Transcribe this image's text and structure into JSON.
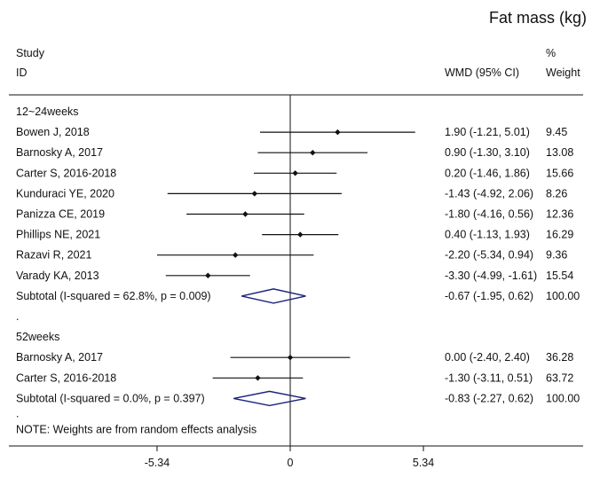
{
  "chart_data": {
    "type": "forest",
    "title": "Fat mass (kg)",
    "header": {
      "study_line1": "Study",
      "study_line2": "ID",
      "pct_line1": "%",
      "ci_label": "WMD (95% CI)",
      "weight_label": "Weight"
    },
    "x_ticks": [
      -5.34,
      0,
      5.34
    ],
    "x_tick_labels": [
      "-5.34",
      "0",
      "5.34"
    ],
    "xlim": [
      -5.34,
      5.34
    ],
    "groups": [
      {
        "label": "12~24weeks",
        "studies": [
          {
            "name": "Bowen J, 2018",
            "est": 1.9,
            "lo": -1.21,
            "hi": 5.01,
            "ci_text": "1.90 (-1.21, 5.01)",
            "weight": "9.45"
          },
          {
            "name": "Barnosky A, 2017",
            "est": 0.9,
            "lo": -1.3,
            "hi": 3.1,
            "ci_text": "0.90 (-1.30, 3.10)",
            "weight": "13.08"
          },
          {
            "name": "Carter S, 2016-2018",
            "est": 0.2,
            "lo": -1.46,
            "hi": 1.86,
            "ci_text": "0.20 (-1.46, 1.86)",
            "weight": "15.66"
          },
          {
            "name": "Kunduraci YE, 2020",
            "est": -1.43,
            "lo": -4.92,
            "hi": 2.06,
            "ci_text": "-1.43 (-4.92, 2.06)",
            "weight": "8.26"
          },
          {
            "name": "Panizza CE, 2019",
            "est": -1.8,
            "lo": -4.16,
            "hi": 0.56,
            "ci_text": "-1.80 (-4.16, 0.56)",
            "weight": "12.36"
          },
          {
            "name": "Phillips NE, 2021",
            "est": 0.4,
            "lo": -1.13,
            "hi": 1.93,
            "ci_text": "0.40 (-1.13, 1.93)",
            "weight": "16.29"
          },
          {
            "name": "Razavi R, 2021",
            "est": -2.2,
            "lo": -5.34,
            "hi": 0.94,
            "ci_text": "-2.20 (-5.34, 0.94)",
            "weight": "9.36"
          },
          {
            "name": "Varady KA, 2013",
            "est": -3.3,
            "lo": -4.99,
            "hi": -1.61,
            "ci_text": "-3.30 (-4.99, -1.61)",
            "weight": "15.54"
          }
        ],
        "subtotal": {
          "label": "Subtotal  (I-squared = 62.8%, p = 0.009)",
          "est": -0.67,
          "lo": -1.95,
          "hi": 0.62,
          "ci_text": "-0.67 (-1.95, 0.62)",
          "weight": "100.00"
        }
      },
      {
        "label": "52weeks",
        "studies": [
          {
            "name": "Barnosky A, 2017",
            "est": 0.0,
            "lo": -2.4,
            "hi": 2.4,
            "ci_text": "0.00 (-2.40, 2.40)",
            "weight": "36.28"
          },
          {
            "name": "Carter S, 2016-2018",
            "est": -1.3,
            "lo": -3.11,
            "hi": 0.51,
            "ci_text": "-1.30 (-3.11, 0.51)",
            "weight": "63.72"
          }
        ],
        "subtotal": {
          "label": "Subtotal  (I-squared = 0.0%, p = 0.397)",
          "est": -0.83,
          "lo": -2.27,
          "hi": 0.62,
          "ci_text": "-0.83 (-2.27, 0.62)",
          "weight": "100.00"
        }
      }
    ],
    "separator_dot": ".",
    "note_dot": ".",
    "note": "NOTE: Weights are from random effects analysis"
  }
}
